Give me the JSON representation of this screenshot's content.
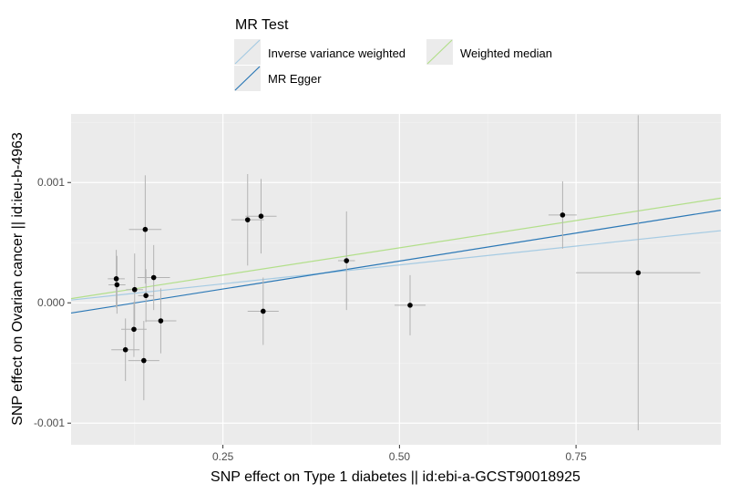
{
  "chart_data": {
    "type": "scatter",
    "xlabel": "SNP effect on Type 1 diabetes || id:ebi-a-GCST90018925",
    "ylabel": "SNP effect on Ovarian cancer || id:ieu-b-4963",
    "xlim": [
      0.035,
      0.955
    ],
    "ylim": [
      -0.00118,
      0.00157
    ],
    "x_ticks": [
      0.25,
      0.5,
      0.75
    ],
    "x_tick_labels": [
      "0.25",
      "0.50",
      "0.75"
    ],
    "y_ticks": [
      -0.001,
      0.0,
      0.001
    ],
    "y_tick_labels": [
      "-0.001",
      "0.000",
      "0.001"
    ],
    "grid": true,
    "legend": {
      "title": "MR Test",
      "position": "top",
      "entries": [
        {
          "label": "Inverse variance weighted",
          "color": "#a6cbe3"
        },
        {
          "label": "Weighted median",
          "color": "#b2df8a"
        },
        {
          "label": "MR Egger",
          "color": "#2b78b6"
        }
      ]
    },
    "points": [
      {
        "x": 0.099,
        "y": 0.0002,
        "xerr": 0.012,
        "yerr": 0.00024
      },
      {
        "x": 0.1,
        "y": 0.00015,
        "xerr": 0.012,
        "yerr": 0.00024
      },
      {
        "x": 0.112,
        "y": -0.00039,
        "xerr": 0.02,
        "yerr": 0.00026
      },
      {
        "x": 0.125,
        "y": 0.00011,
        "xerr": 0.012,
        "yerr": 0.0003
      },
      {
        "x": 0.124,
        "y": -0.00022,
        "xerr": 0.018,
        "yerr": 0.00023
      },
      {
        "x": 0.14,
        "y": 0.00061,
        "xerr": 0.023,
        "yerr": 0.00045
      },
      {
        "x": 0.141,
        "y": 6e-05,
        "xerr": 0.011,
        "yerr": 0.00022
      },
      {
        "x": 0.138,
        "y": -0.00048,
        "xerr": 0.022,
        "yerr": 0.00033
      },
      {
        "x": 0.152,
        "y": 0.00021,
        "xerr": 0.023,
        "yerr": 0.00027
      },
      {
        "x": 0.162,
        "y": -0.00015,
        "xerr": 0.022,
        "yerr": 0.00027
      },
      {
        "x": 0.285,
        "y": 0.00069,
        "xerr": 0.023,
        "yerr": 0.00038
      },
      {
        "x": 0.304,
        "y": 0.00072,
        "xerr": 0.022,
        "yerr": 0.00031
      },
      {
        "x": 0.307,
        "y": -7e-05,
        "xerr": 0.022,
        "yerr": 0.00028
      },
      {
        "x": 0.425,
        "y": 0.00035,
        "xerr": 0.012,
        "yerr": 0.00041
      },
      {
        "x": 0.515,
        "y": -2e-05,
        "xerr": 0.022,
        "yerr": 0.00025
      },
      {
        "x": 0.731,
        "y": 0.00073,
        "xerr": 0.02,
        "yerr": 0.00028
      },
      {
        "x": 0.838,
        "y": 0.00025,
        "xerr": 0.088,
        "yerr": 0.00131
      }
    ],
    "series": [
      {
        "name": "Inverse variance weighted",
        "color": "#a6cbe3",
        "x": [
          0.035,
          0.955
        ],
        "y": [
          2.3e-05,
          0.0006
        ]
      },
      {
        "name": "MR Egger",
        "color": "#2b78b6",
        "x": [
          0.035,
          0.955
        ],
        "y": [
          -8.5e-05,
          0.00077
        ]
      },
      {
        "name": "Weighted median",
        "color": "#b2df8a",
        "x": [
          0.035,
          0.955
        ],
        "y": [
          3.5e-05,
          0.00087
        ]
      }
    ]
  }
}
